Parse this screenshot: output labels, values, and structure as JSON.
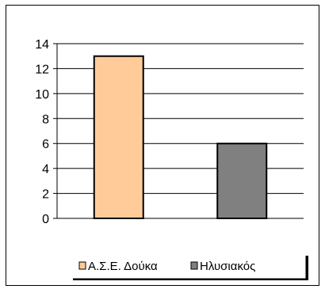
{
  "chart_data": {
    "type": "bar",
    "categories": [
      "Α.Σ.Ε. Δούκα",
      "Ηλυσιακός"
    ],
    "values": [
      13,
      6
    ],
    "colors": [
      "#FFCC99",
      "#808080"
    ],
    "ylim": [
      0,
      14
    ],
    "yticks": [
      "0",
      "2",
      "4",
      "6",
      "8",
      "10",
      "12",
      "14"
    ],
    "grid": true,
    "legend_placement": "bottom",
    "legend": [
      {
        "label": "Α.Σ.Ε. Δούκα",
        "color": "#FFCC99"
      },
      {
        "label": "Ηλυσιακός",
        "color": "#808080"
      }
    ]
  }
}
